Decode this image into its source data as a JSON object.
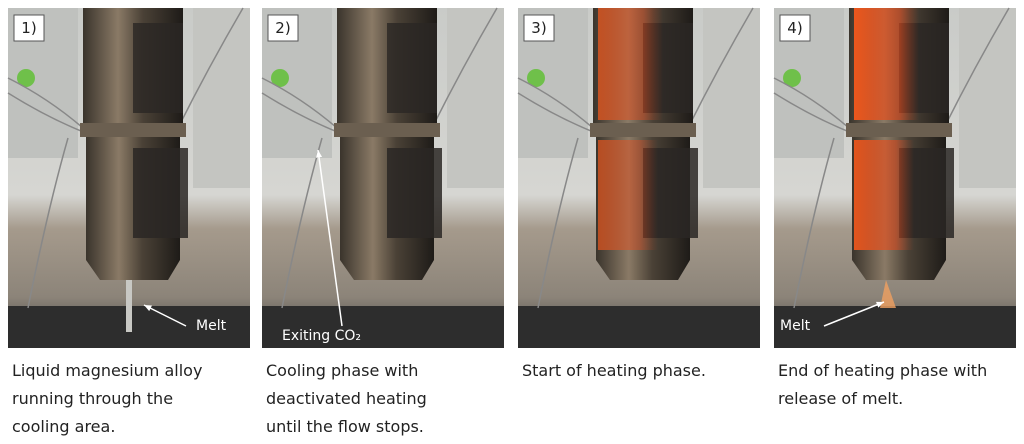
{
  "panels": [
    {
      "label": "1)",
      "annotation": "Melt",
      "caption": [
        "Liquid magnesium alloy",
        "running through the",
        "cooling area."
      ]
    },
    {
      "label": "2)",
      "annotation": "Exiting CO₂",
      "caption": [
        "Cooling phase with",
        "deactivated heating",
        "until the flow stops."
      ]
    },
    {
      "label": "3)",
      "caption": [
        "Start of heating phase."
      ]
    },
    {
      "label": "4)",
      "annotation": "Melt",
      "caption": [
        "End of heating phase with",
        "release of melt."
      ]
    }
  ]
}
